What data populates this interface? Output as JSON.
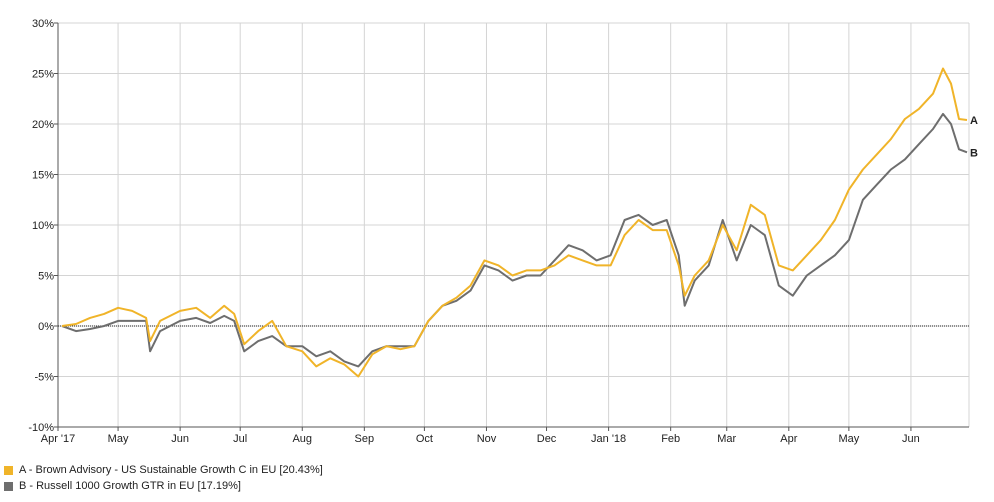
{
  "chart_data": {
    "type": "line",
    "title": "",
    "xlabel": "",
    "ylabel": "",
    "ylim": [
      -10,
      30
    ],
    "yticks": [
      -10,
      -5,
      0,
      5,
      10,
      15,
      20,
      25,
      30
    ],
    "ytick_labels": [
      "-10%",
      "-5%",
      "0%",
      "5%",
      "10%",
      "15%",
      "20%",
      "25%",
      "30%"
    ],
    "x_start": "2017-04-01",
    "x_end": "2018-06-30",
    "xtick_dates": [
      "2017-04-01",
      "2017-05-01",
      "2017-06-01",
      "2017-07-01",
      "2017-08-01",
      "2017-09-01",
      "2017-10-01",
      "2017-11-01",
      "2017-12-01",
      "2018-01-01",
      "2018-02-01",
      "2018-03-01",
      "2018-04-01",
      "2018-05-01",
      "2018-06-01"
    ],
    "xtick_labels": [
      "Apr '17",
      "May",
      "Jun",
      "Jul",
      "Aug",
      "Sep",
      "Oct",
      "Nov",
      "Dec",
      "Jan '18",
      "Feb",
      "Mar",
      "Apr",
      "May",
      "Jun"
    ],
    "grid": true,
    "baseline": 0,
    "legend_position": "bottom-left",
    "series": [
      {
        "name": "A - Brown Advisory - US Sustainable Growth C in EU [20.43%]",
        "end_label": "A",
        "color": "#f0b429",
        "x": [
          "2017-04-03",
          "2017-04-10",
          "2017-04-17",
          "2017-04-24",
          "2017-05-01",
          "2017-05-08",
          "2017-05-15",
          "2017-05-17",
          "2017-05-22",
          "2017-06-01",
          "2017-06-09",
          "2017-06-16",
          "2017-06-23",
          "2017-06-28",
          "2017-07-03",
          "2017-07-10",
          "2017-07-17",
          "2017-07-24",
          "2017-08-01",
          "2017-08-08",
          "2017-08-15",
          "2017-08-22",
          "2017-08-29",
          "2017-09-05",
          "2017-09-12",
          "2017-09-19",
          "2017-09-26",
          "2017-10-03",
          "2017-10-10",
          "2017-10-17",
          "2017-10-24",
          "2017-10-31",
          "2017-11-07",
          "2017-11-14",
          "2017-11-21",
          "2017-11-28",
          "2017-12-05",
          "2017-12-12",
          "2017-12-19",
          "2017-12-26",
          "2018-01-02",
          "2018-01-09",
          "2018-01-16",
          "2018-01-23",
          "2018-01-30",
          "2018-02-05",
          "2018-02-08",
          "2018-02-13",
          "2018-02-20",
          "2018-02-27",
          "2018-03-06",
          "2018-03-13",
          "2018-03-20",
          "2018-03-27",
          "2018-04-03",
          "2018-04-10",
          "2018-04-17",
          "2018-04-24",
          "2018-05-01",
          "2018-05-08",
          "2018-05-15",
          "2018-05-22",
          "2018-05-29",
          "2018-06-05",
          "2018-06-12",
          "2018-06-17",
          "2018-06-21",
          "2018-06-25",
          "2018-06-29"
        ],
        "values": [
          0,
          0.2,
          0.8,
          1.2,
          1.8,
          1.5,
          0.8,
          -1.5,
          0.5,
          1.5,
          1.8,
          0.8,
          2.0,
          1.2,
          -1.8,
          -0.5,
          0.5,
          -2.0,
          -2.5,
          -4.0,
          -3.2,
          -3.8,
          -5.0,
          -2.8,
          -2.0,
          -2.3,
          -2.0,
          0.5,
          2.0,
          2.8,
          4.0,
          6.5,
          6.0,
          5.0,
          5.5,
          5.5,
          6.0,
          7.0,
          6.5,
          6.0,
          6.0,
          9.0,
          10.5,
          9.5,
          9.5,
          6.0,
          3.0,
          5.0,
          6.5,
          10.0,
          7.5,
          12.0,
          11.0,
          6.0,
          5.5,
          7.0,
          8.5,
          10.5,
          13.5,
          15.5,
          17.0,
          18.5,
          20.5,
          21.5,
          23.0,
          25.5,
          24.0,
          20.5,
          20.4
        ]
      },
      {
        "name": "B - Russell 1000 Growth GTR in EU [17.19%]",
        "end_label": "B",
        "color": "#6e6e6e",
        "x": [
          "2017-04-03",
          "2017-04-10",
          "2017-04-17",
          "2017-04-24",
          "2017-05-01",
          "2017-05-08",
          "2017-05-15",
          "2017-05-17",
          "2017-05-22",
          "2017-06-01",
          "2017-06-09",
          "2017-06-16",
          "2017-06-23",
          "2017-06-28",
          "2017-07-03",
          "2017-07-10",
          "2017-07-17",
          "2017-07-24",
          "2017-08-01",
          "2017-08-08",
          "2017-08-15",
          "2017-08-22",
          "2017-08-29",
          "2017-09-05",
          "2017-09-12",
          "2017-09-19",
          "2017-09-26",
          "2017-10-03",
          "2017-10-10",
          "2017-10-17",
          "2017-10-24",
          "2017-10-31",
          "2017-11-07",
          "2017-11-14",
          "2017-11-21",
          "2017-11-28",
          "2017-12-05",
          "2017-12-12",
          "2017-12-19",
          "2017-12-26",
          "2018-01-02",
          "2018-01-09",
          "2018-01-16",
          "2018-01-23",
          "2018-01-30",
          "2018-02-05",
          "2018-02-08",
          "2018-02-13",
          "2018-02-20",
          "2018-02-27",
          "2018-03-06",
          "2018-03-13",
          "2018-03-20",
          "2018-03-27",
          "2018-04-03",
          "2018-04-10",
          "2018-04-17",
          "2018-04-24",
          "2018-05-01",
          "2018-05-08",
          "2018-05-15",
          "2018-05-22",
          "2018-05-29",
          "2018-06-05",
          "2018-06-12",
          "2018-06-17",
          "2018-06-21",
          "2018-06-25",
          "2018-06-29"
        ],
        "values": [
          0,
          -0.5,
          -0.3,
          0,
          0.5,
          0.5,
          0.5,
          -2.5,
          -0.5,
          0.5,
          0.8,
          0.3,
          1.0,
          0.5,
          -2.5,
          -1.5,
          -1.0,
          -2.0,
          -2.0,
          -3.0,
          -2.5,
          -3.5,
          -4.0,
          -2.5,
          -2.0,
          -2.0,
          -2.0,
          0.5,
          2.0,
          2.5,
          3.5,
          6.0,
          5.5,
          4.5,
          5.0,
          5.0,
          6.5,
          8.0,
          7.5,
          6.5,
          7.0,
          10.5,
          11.0,
          10.0,
          10.5,
          7.0,
          2.0,
          4.5,
          6.0,
          10.5,
          6.5,
          10.0,
          9.0,
          4.0,
          3.0,
          5.0,
          6.0,
          7.0,
          8.5,
          12.5,
          14.0,
          15.5,
          16.5,
          18.0,
          19.5,
          21.0,
          20.0,
          17.5,
          17.2
        ]
      }
    ]
  }
}
